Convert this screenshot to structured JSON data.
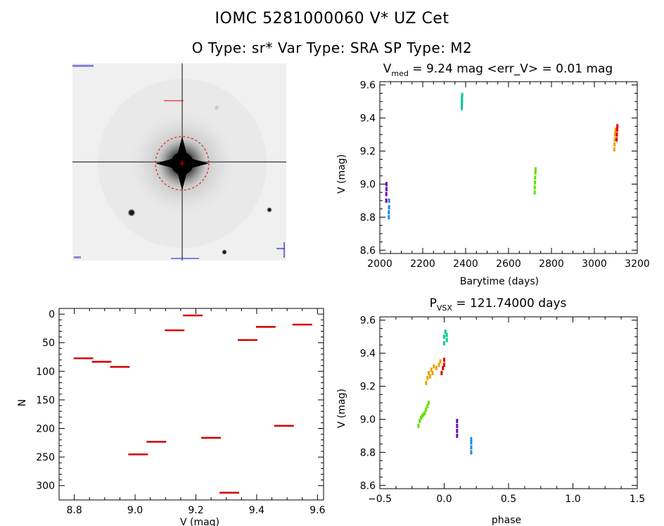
{
  "header": {
    "title": "IOMC 5281000060    V* UZ Cet",
    "subtitle": "O Type: sr*  Var Type: SRA  SP Type: M2"
  },
  "colors": {
    "histogram": "#d40000",
    "image_circle": "#e00000",
    "palette": [
      "#6a0dad",
      "#1e88e5",
      "#00c896",
      "#66e000",
      "#f0a000",
      "#e00000"
    ]
  },
  "chart_data": [
    {
      "id": "lightcurve",
      "type": "scatter",
      "title": "V_med = 9.24 mag <err_V> = 0.01 mag",
      "title_parts": {
        "prefix": "V",
        "sub": "med",
        "rest": " = 9.24 mag <err_V> = 0.01 mag"
      },
      "xlabel": "Barytime (days)",
      "ylabel": "V (mag)",
      "xlim": [
        2000,
        3200
      ],
      "ylim": [
        9.62,
        8.58
      ],
      "xticks": [
        2000,
        2200,
        2400,
        2600,
        2800,
        3000,
        3200
      ],
      "yticks": [
        8.6,
        8.8,
        9.0,
        9.2,
        9.4,
        9.6
      ],
      "ytick_labels": [
        "8.6",
        "8.8",
        "9.0",
        "9.2",
        "9.4",
        "9.6"
      ],
      "series": [
        {
          "color": "#6a0dad",
          "points": [
            [
              2030,
              8.9
            ],
            [
              2030,
              8.94
            ],
            [
              2031,
              8.97
            ],
            [
              2031,
              9.0
            ]
          ]
        },
        {
          "color": "#1e88e5",
          "points": [
            [
              2042,
              8.8
            ],
            [
              2042,
              8.83
            ],
            [
              2043,
              8.86
            ],
            [
              2043,
              8.9
            ]
          ]
        },
        {
          "color": "#00c896",
          "points": [
            [
              2382,
              9.46
            ],
            [
              2382,
              9.48
            ],
            [
              2383,
              9.5
            ],
            [
              2383,
              9.52
            ],
            [
              2384,
              9.54
            ]
          ]
        },
        {
          "color": "#66e000",
          "points": [
            [
              2722,
              8.95
            ],
            [
              2722,
              8.98
            ],
            [
              2723,
              9.01
            ],
            [
              2724,
              9.04
            ],
            [
              2725,
              9.07
            ],
            [
              2726,
              9.09
            ]
          ]
        },
        {
          "color": "#f0a000",
          "points": [
            [
              3093,
              9.21
            ],
            [
              3094,
              9.24
            ],
            [
              3095,
              9.27
            ],
            [
              3096,
              9.3
            ],
            [
              3098,
              9.32
            ],
            [
              3100,
              9.33
            ]
          ]
        },
        {
          "color": "#e00000",
          "points": [
            [
              3104,
              9.27
            ],
            [
              3105,
              9.3
            ],
            [
              3106,
              9.33
            ],
            [
              3107,
              9.35
            ]
          ]
        }
      ]
    },
    {
      "id": "histogram",
      "type": "bar",
      "xlabel": "V (mag)",
      "ylabel": "N",
      "xlim": [
        8.75,
        9.62
      ],
      "ylim": [
        -10,
        325
      ],
      "xticks": [
        8.8,
        9.0,
        9.2,
        9.4,
        9.6
      ],
      "xtick_labels": [
        "8.8",
        "9.0",
        "9.2",
        "9.4",
        "9.6"
      ],
      "yticks": [
        0,
        50,
        100,
        150,
        200,
        250,
        300
      ],
      "bin_edges": [
        8.8,
        8.86,
        8.92,
        8.98,
        9.04,
        9.1,
        9.16,
        9.22,
        9.28,
        9.34,
        9.4,
        9.46,
        9.52,
        9.58
      ],
      "values": [
        77,
        83,
        92,
        245,
        223,
        28,
        2,
        216,
        312,
        45,
        22,
        195,
        18
      ]
    },
    {
      "id": "phased",
      "type": "scatter",
      "title": "P_VSX = 121.74000 days",
      "title_parts": {
        "prefix": "P",
        "sub": "VSX",
        "rest": " = 121.74000 days"
      },
      "xlabel": "phase",
      "ylabel": "V (mag)",
      "xlim": [
        -0.5,
        1.5
      ],
      "ylim": [
        9.62,
        8.58
      ],
      "xticks": [
        -0.5,
        0.0,
        0.5,
        1.0,
        1.5
      ],
      "xtick_labels": [
        "−0.5",
        "0.0",
        "0.5",
        "1.0",
        "1.5"
      ],
      "yticks": [
        8.6,
        8.8,
        9.0,
        9.2,
        9.4,
        9.6
      ],
      "ytick_labels": [
        "8.6",
        "8.8",
        "9.0",
        "9.2",
        "9.4",
        "9.6"
      ],
      "series": [
        {
          "color": "#6a0dad",
          "points": [
            [
              0.1,
              8.9
            ],
            [
              0.1,
              8.93
            ],
            [
              0.1,
              8.96
            ],
            [
              0.1,
              8.99
            ]
          ]
        },
        {
          "color": "#1e88e5",
          "points": [
            [
              0.21,
              8.8
            ],
            [
              0.21,
              8.83
            ],
            [
              0.21,
              8.86
            ],
            [
              0.21,
              8.88
            ]
          ]
        },
        {
          "color": "#00c896",
          "points": [
            [
              0.0,
              9.46
            ],
            [
              0.0,
              9.5
            ],
            [
              0.01,
              9.53
            ],
            [
              0.02,
              9.48
            ],
            [
              0.02,
              9.51
            ]
          ]
        },
        {
          "color": "#66e000",
          "points": [
            [
              -0.2,
              8.96
            ],
            [
              -0.19,
              8.99
            ],
            [
              -0.18,
              9.01
            ],
            [
              -0.17,
              9.02
            ],
            [
              -0.16,
              9.03
            ],
            [
              -0.15,
              9.04
            ],
            [
              -0.14,
              9.06
            ],
            [
              -0.13,
              9.08
            ],
            [
              -0.12,
              9.1
            ]
          ]
        },
        {
          "color": "#f0a000",
          "points": [
            [
              -0.14,
              9.22
            ],
            [
              -0.13,
              9.25
            ],
            [
              -0.12,
              9.28
            ],
            [
              -0.11,
              9.26
            ],
            [
              -0.1,
              9.3
            ],
            [
              -0.09,
              9.28
            ],
            [
              -0.08,
              9.32
            ],
            [
              -0.06,
              9.31
            ],
            [
              -0.04,
              9.33
            ],
            [
              -0.03,
              9.35
            ]
          ]
        },
        {
          "color": "#e00000",
          "points": [
            [
              -0.02,
              9.28
            ],
            [
              -0.01,
              9.31
            ],
            [
              0.0,
              9.33
            ],
            [
              0.0,
              9.36
            ]
          ]
        }
      ]
    }
  ]
}
